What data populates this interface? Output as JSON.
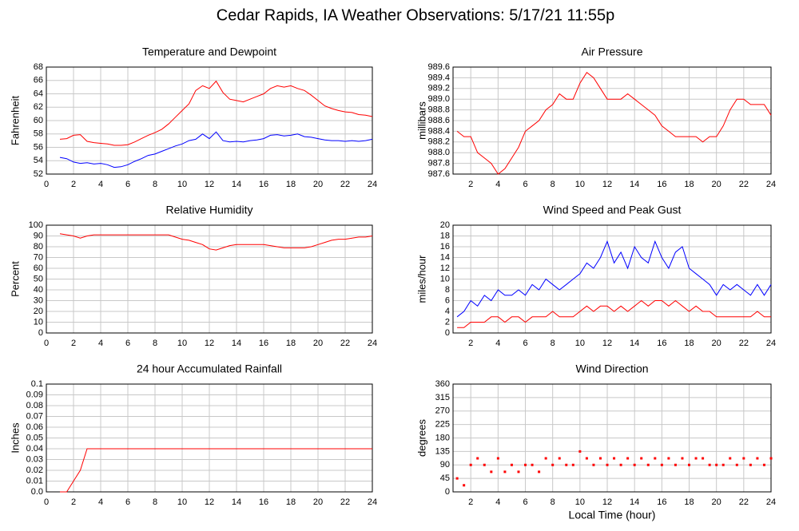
{
  "title": "Cedar Rapids, IA Weather Observations: 5/17/21 11:55p",
  "chart_data": [
    {
      "type": "line",
      "title": "Temperature and Dewpoint",
      "ylabel": "Fahrenheit",
      "xlim": [
        0,
        24
      ],
      "xticks": [
        0,
        2,
        4,
        6,
        8,
        10,
        12,
        14,
        16,
        18,
        20,
        22,
        24
      ],
      "ylim": [
        52,
        68
      ],
      "yticks": [
        52,
        54,
        56,
        58,
        60,
        62,
        64,
        66,
        68
      ],
      "grid": true,
      "x": [
        1,
        1.5,
        2,
        2.5,
        3,
        3.5,
        4,
        4.5,
        5,
        5.5,
        6,
        6.5,
        7,
        7.5,
        8,
        8.5,
        9,
        9.5,
        10,
        10.5,
        11,
        11.5,
        12,
        12.5,
        13,
        13.5,
        14,
        14.5,
        15,
        15.5,
        16,
        16.5,
        17,
        17.5,
        18,
        18.5,
        19,
        19.5,
        20,
        20.5,
        21,
        21.5,
        22,
        22.5,
        23,
        23.5,
        24
      ],
      "series": [
        {
          "color": "#ff0000",
          "values": [
            57.2,
            57.3,
            57.8,
            57.9,
            56.9,
            56.7,
            56.6,
            56.5,
            56.3,
            56.3,
            56.4,
            56.8,
            57.3,
            57.8,
            58.2,
            58.7,
            59.5,
            60.5,
            61.5,
            62.5,
            64.5,
            65.2,
            64.8,
            65.9,
            64.2,
            63.2,
            63.0,
            62.8,
            63.2,
            63.6,
            64.0,
            64.8,
            65.2,
            65.0,
            65.2,
            64.8,
            64.5,
            63.8,
            63.0,
            62.2,
            61.8,
            61.5,
            61.3,
            61.2,
            60.9,
            60.8,
            60.6
          ]
        },
        {
          "color": "#0000ff",
          "values": [
            54.5,
            54.3,
            53.8,
            53.6,
            53.7,
            53.5,
            53.6,
            53.4,
            53.0,
            53.1,
            53.4,
            53.9,
            54.3,
            54.8,
            55.0,
            55.4,
            55.8,
            56.2,
            56.5,
            57.0,
            57.2,
            58.0,
            57.3,
            58.3,
            57.0,
            56.8,
            56.9,
            56.8,
            57.0,
            57.1,
            57.3,
            57.8,
            57.9,
            57.7,
            57.8,
            58.0,
            57.6,
            57.5,
            57.3,
            57.1,
            57.0,
            57.0,
            56.9,
            57.0,
            56.9,
            57.0,
            57.2
          ]
        }
      ]
    },
    {
      "type": "line",
      "title": "Air Pressure",
      "ylabel": "millibars",
      "xlim": [
        0.7,
        24
      ],
      "xticks": [
        2,
        4,
        6,
        8,
        10,
        12,
        14,
        16,
        18,
        20,
        22,
        24
      ],
      "ylim": [
        987.6,
        989.6
      ],
      "yticks": [
        987.6,
        987.8,
        {
          "value": 988,
          "label": "988.0"
        },
        988.2,
        988.4,
        988.6,
        988.8,
        {
          "value": 989,
          "label": "989.0"
        },
        989.2,
        989.4,
        989.6
      ],
      "grid": true,
      "x": [
        1,
        1.5,
        2,
        2.5,
        3,
        3.5,
        4,
        4.5,
        5,
        5.5,
        6,
        6.5,
        7,
        7.5,
        8,
        8.5,
        9,
        9.5,
        10,
        10.5,
        11,
        11.5,
        12,
        12.5,
        13,
        13.5,
        14,
        14.5,
        15,
        15.5,
        16,
        16.5,
        17,
        17.5,
        18,
        18.5,
        19,
        19.5,
        20,
        20.5,
        21,
        21.5,
        22,
        22.5,
        23,
        23.5,
        24
      ],
      "series": [
        {
          "color": "#ff0000",
          "values": [
            988.4,
            988.3,
            988.3,
            988.0,
            987.9,
            987.8,
            987.6,
            987.7,
            987.9,
            988.1,
            988.4,
            988.5,
            988.6,
            988.8,
            988.9,
            989.1,
            989.0,
            989.0,
            989.3,
            989.5,
            989.4,
            989.2,
            989.0,
            989.0,
            989.0,
            989.1,
            989.0,
            988.9,
            988.8,
            988.7,
            988.5,
            988.4,
            988.3,
            988.3,
            988.3,
            988.3,
            988.2,
            988.3,
            988.3,
            988.5,
            988.8,
            989.0,
            989.0,
            988.9,
            988.9,
            988.9,
            988.7
          ]
        }
      ]
    },
    {
      "type": "line",
      "title": "Relative Humidity",
      "ylabel": "Percent",
      "xlim": [
        0,
        24
      ],
      "xticks": [
        0,
        2,
        4,
        6,
        8,
        10,
        12,
        14,
        16,
        18,
        20,
        22,
        24
      ],
      "ylim": [
        0,
        100
      ],
      "yticks": [
        0,
        10,
        20,
        30,
        40,
        50,
        60,
        70,
        80,
        90,
        100
      ],
      "grid": true,
      "x": [
        1,
        1.5,
        2,
        2.5,
        3,
        3.5,
        4,
        4.5,
        5,
        5.5,
        6,
        6.5,
        7,
        7.5,
        8,
        8.5,
        9,
        9.5,
        10,
        10.5,
        11,
        11.5,
        12,
        12.5,
        13,
        13.5,
        14,
        14.5,
        15,
        15.5,
        16,
        16.5,
        17,
        17.5,
        18,
        18.5,
        19,
        19.5,
        20,
        20.5,
        21,
        21.5,
        22,
        22.5,
        23,
        23.5,
        24
      ],
      "series": [
        {
          "color": "#ff0000",
          "values": [
            92,
            91,
            90,
            88,
            90,
            91,
            91,
            91,
            91,
            91,
            91,
            91,
            91,
            91,
            91,
            91,
            91,
            89,
            87,
            86,
            84,
            82,
            78,
            77,
            79,
            81,
            82,
            82,
            82,
            82,
            82,
            81,
            80,
            79,
            79,
            79,
            79,
            80,
            82,
            84,
            86,
            87,
            87,
            88,
            89,
            89,
            90
          ]
        }
      ]
    },
    {
      "type": "line",
      "title": "Wind Speed and Peak Gust",
      "ylabel": "miles/hour",
      "xlim": [
        0.7,
        24
      ],
      "xticks": [
        2,
        4,
        6,
        8,
        10,
        12,
        14,
        16,
        18,
        20,
        22,
        24
      ],
      "ylim": [
        0,
        20
      ],
      "yticks": [
        0,
        2,
        4,
        6,
        8,
        10,
        12,
        14,
        16,
        18,
        20
      ],
      "grid": true,
      "x": [
        1,
        1.5,
        2,
        2.5,
        3,
        3.5,
        4,
        4.5,
        5,
        5.5,
        6,
        6.5,
        7,
        7.5,
        8,
        8.5,
        9,
        9.5,
        10,
        10.5,
        11,
        11.5,
        12,
        12.5,
        13,
        13.5,
        14,
        14.5,
        15,
        15.5,
        16,
        16.5,
        17,
        17.5,
        18,
        18.5,
        19,
        19.5,
        20,
        20.5,
        21,
        21.5,
        22,
        22.5,
        23,
        23.5,
        24
      ],
      "series": [
        {
          "color": "#0000ff",
          "values": [
            3,
            4,
            6,
            5,
            7,
            6,
            8,
            7,
            7,
            8,
            7,
            9,
            8,
            10,
            9,
            8,
            9,
            10,
            11,
            13,
            12,
            14,
            17,
            13,
            15,
            12,
            16,
            14,
            13,
            17,
            14,
            12,
            15,
            16,
            12,
            11,
            10,
            9,
            7,
            9,
            8,
            9,
            8,
            7,
            9,
            7,
            9
          ]
        },
        {
          "color": "#ff0000",
          "values": [
            1,
            1,
            2,
            2,
            2,
            3,
            3,
            2,
            3,
            3,
            2,
            3,
            3,
            3,
            4,
            3,
            3,
            3,
            4,
            5,
            4,
            5,
            5,
            4,
            5,
            4,
            5,
            6,
            5,
            6,
            6,
            5,
            6,
            5,
            4,
            5,
            4,
            4,
            3,
            3,
            3,
            3,
            3,
            3,
            4,
            3,
            3
          ]
        }
      ]
    },
    {
      "type": "line",
      "title": "24 hour Accumulated Rainfall",
      "ylabel": "Inches",
      "xlim": [
        0,
        24
      ],
      "xticks": [
        0,
        2,
        4,
        6,
        8,
        10,
        12,
        14,
        16,
        18,
        20,
        22,
        24
      ],
      "ylim": [
        0,
        0.1
      ],
      "yticks": [
        {
          "value": 0,
          "label": "0.0"
        },
        0.01,
        0.02,
        0.03,
        0.04,
        0.05,
        0.06,
        0.07,
        0.08,
        0.09,
        0.1
      ],
      "grid": true,
      "x": [
        1,
        1.5,
        2,
        2.5,
        3,
        3.5,
        4,
        4.5,
        5,
        5.5,
        6,
        6.5,
        7,
        7.5,
        8,
        8.5,
        9,
        9.5,
        10,
        10.5,
        11,
        11.5,
        12,
        12.5,
        13,
        13.5,
        14,
        14.5,
        15,
        15.5,
        16,
        16.5,
        17,
        17.5,
        18,
        18.5,
        19,
        19.5,
        20,
        20.5,
        21,
        21.5,
        22,
        22.5,
        23,
        23.5,
        24
      ],
      "series": [
        {
          "color": "#ff0000",
          "values": [
            0,
            0,
            0.01,
            0.02,
            0.04,
            0.04,
            0.04,
            0.04,
            0.04,
            0.04,
            0.04,
            0.04,
            0.04,
            0.04,
            0.04,
            0.04,
            0.04,
            0.04,
            0.04,
            0.04,
            0.04,
            0.04,
            0.04,
            0.04,
            0.04,
            0.04,
            0.04,
            0.04,
            0.04,
            0.04,
            0.04,
            0.04,
            0.04,
            0.04,
            0.04,
            0.04,
            0.04,
            0.04,
            0.04,
            0.04,
            0.04,
            0.04,
            0.04,
            0.04,
            0.04,
            0.04,
            0.04
          ]
        }
      ]
    },
    {
      "type": "scatter",
      "title": "Wind Direction",
      "ylabel": "degrees",
      "xlabel": "Local Time (hour)",
      "xlim": [
        0.7,
        24
      ],
      "xticks": [
        2,
        4,
        6,
        8,
        10,
        12,
        14,
        16,
        18,
        20,
        22,
        24
      ],
      "ylim": [
        0,
        360
      ],
      "yticks": [
        0,
        45,
        90,
        135,
        180,
        225,
        270,
        315,
        360
      ],
      "grid": true,
      "x": [
        1,
        1.5,
        2,
        2.5,
        3,
        3.5,
        4,
        4.5,
        5,
        5.5,
        6,
        6.5,
        7,
        7.5,
        8,
        8.5,
        9,
        9.5,
        10,
        10.5,
        11,
        11.5,
        12,
        12.5,
        13,
        13.5,
        14,
        14.5,
        15,
        15.5,
        16,
        16.5,
        17,
        17.5,
        18,
        18.5,
        19,
        19.5,
        20,
        20.5,
        21,
        21.5,
        22,
        22.5,
        23,
        23.5,
        24
      ],
      "series": [
        {
          "color": "#ff0000",
          "values": [
            45,
            22,
            90,
            112,
            90,
            67,
            112,
            67,
            90,
            67,
            90,
            90,
            67,
            112,
            90,
            112,
            90,
            90,
            135,
            112,
            90,
            112,
            90,
            112,
            90,
            112,
            90,
            112,
            90,
            112,
            90,
            112,
            90,
            112,
            90,
            112,
            112,
            90,
            90,
            90,
            112,
            90,
            112,
            90,
            112,
            90,
            112
          ]
        }
      ]
    }
  ]
}
